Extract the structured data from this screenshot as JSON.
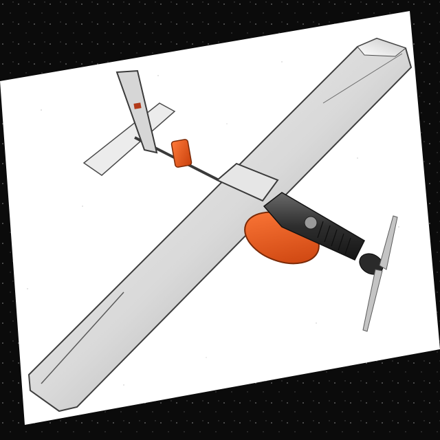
{
  "image": {
    "subject": "rc-airplane-model-render",
    "colors": {
      "background": "#0b0b0b",
      "paper": "#ffffff",
      "wing_light": "#f2f2f2",
      "wing_dark": "#9a9a9a",
      "outline": "#4a4a4a",
      "engine": "#3a3a3a",
      "accent_orange": "#e05a1a",
      "propeller": "#bdbdbd"
    }
  }
}
